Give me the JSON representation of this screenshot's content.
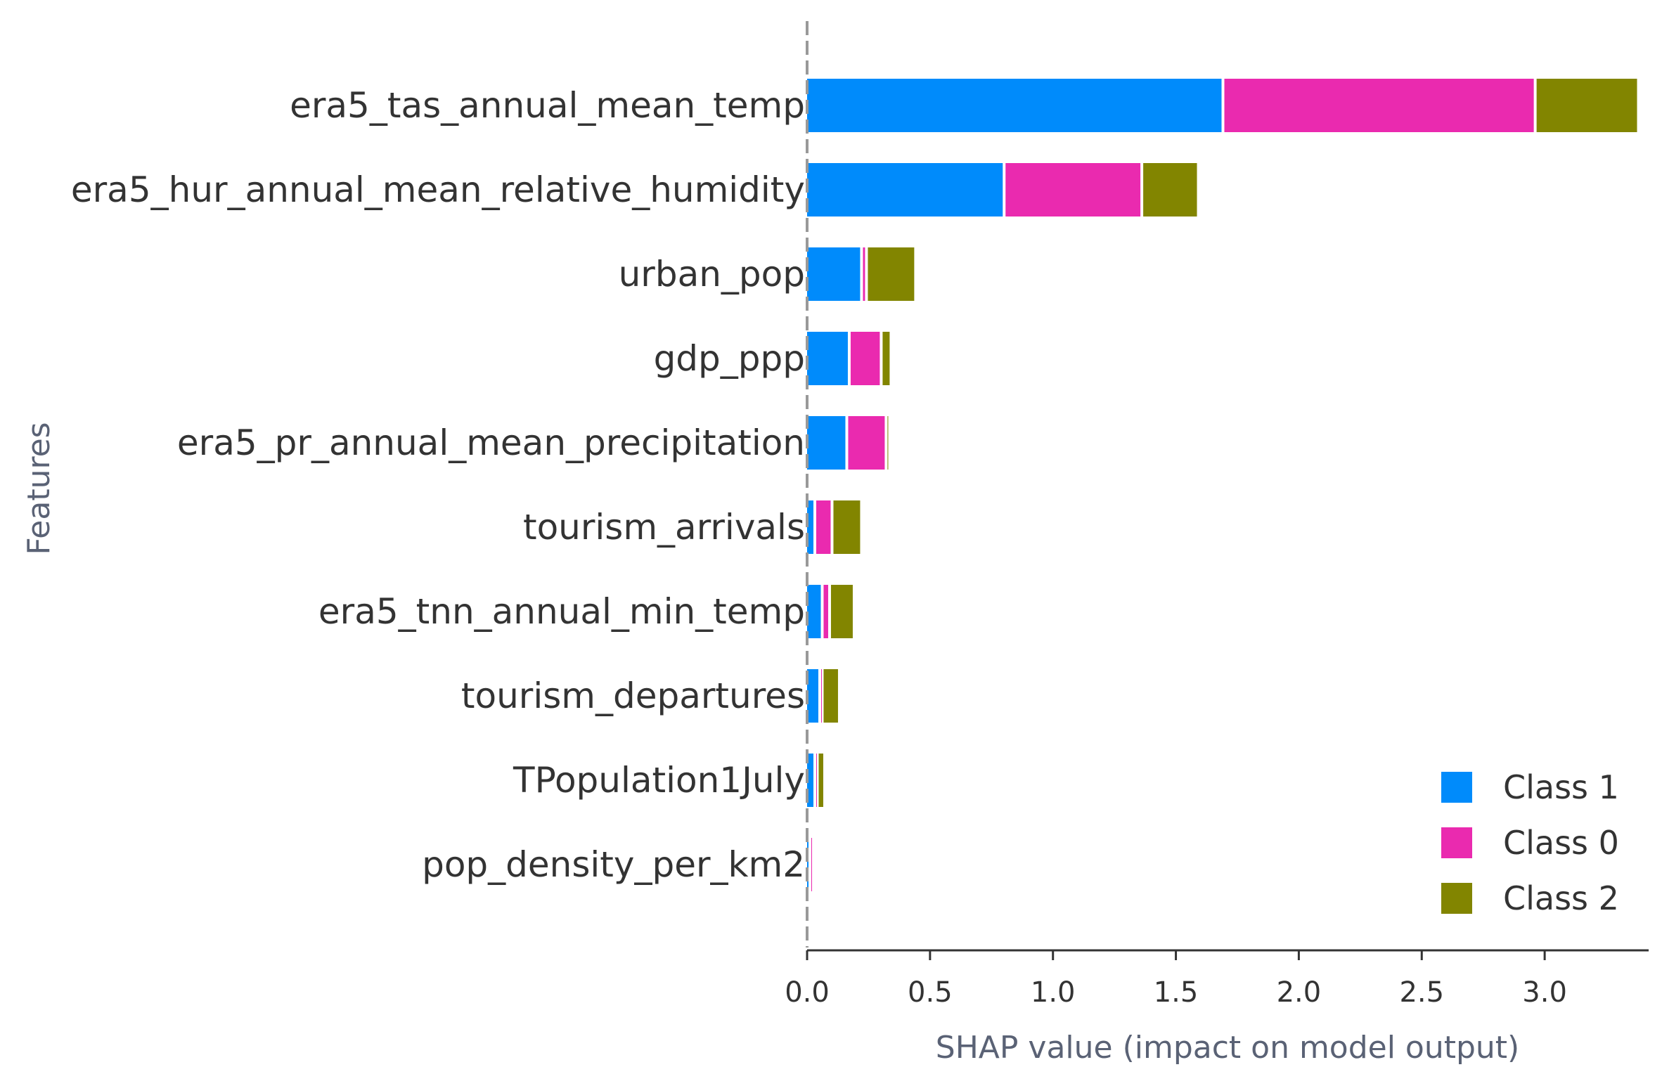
{
  "chart_data": {
    "type": "bar",
    "orientation": "horizontal",
    "stacked": true,
    "xlabel": "SHAP value (impact on model output)",
    "ylabel": "Features",
    "xlim": [
      0,
      3.38
    ],
    "xticks": [
      "0.0",
      "0.5",
      "1.0",
      "1.5",
      "2.0",
      "2.5",
      "3.0"
    ],
    "categories": [
      "era5_tas_annual_mean_temp",
      "era5_hur_annual_mean_relative_humidity",
      "urban_pop",
      "gdp_ppp",
      "era5_pr_annual_mean_precipitation",
      "tourism_arrivals",
      "era5_tnn_annual_min_temp",
      "tourism_departures",
      "TPopulation1July",
      "pop_density_per_km2"
    ],
    "series": [
      {
        "name": "Class 1",
        "color": "#008bfb",
        "values": [
          1.69,
          0.8,
          0.22,
          0.17,
          0.16,
          0.03,
          0.06,
          0.05,
          0.03,
          0.01
        ]
      },
      {
        "name": "Class 0",
        "color": "#ea2aaf",
        "values": [
          1.27,
          0.56,
          0.02,
          0.13,
          0.16,
          0.07,
          0.03,
          0.01,
          0.01,
          0.01
        ]
      },
      {
        "name": "Class 2",
        "color": "#828500",
        "values": [
          0.42,
          0.23,
          0.2,
          0.04,
          0.01,
          0.12,
          0.1,
          0.07,
          0.03,
          0.0
        ]
      }
    ],
    "legend_position": "bottom-right",
    "grid": false,
    "baseline_dashed": true
  }
}
